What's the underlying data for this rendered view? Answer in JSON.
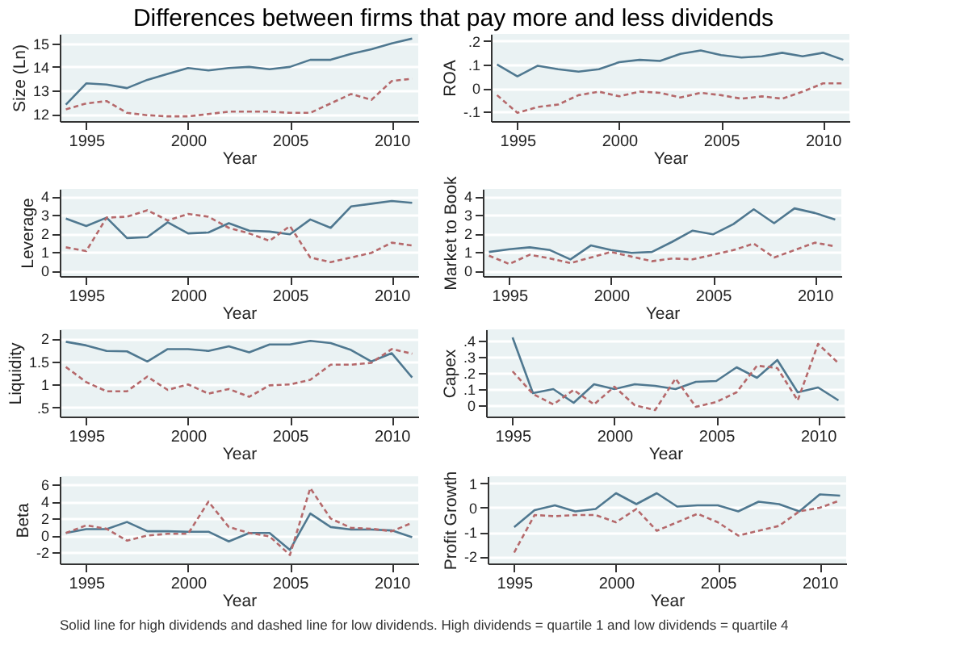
{
  "chart_data": [
    {
      "type": "line",
      "title": "Differences between firms that pay more and less dividends",
      "xlabel": "Year",
      "ylabel": "Size (Ln)",
      "x": [
        1994,
        1995,
        1996,
        1997,
        1998,
        1999,
        2000,
        2001,
        2002,
        2003,
        2004,
        2005,
        2006,
        2007,
        2008,
        2009,
        2010,
        2011
      ],
      "xlim": [
        1993.7,
        2011.3
      ],
      "xticks": [
        1995,
        2000,
        2005,
        2010
      ],
      "ylim": [
        11.7,
        15.4
      ],
      "yticks": [
        12,
        13,
        14,
        15
      ],
      "grid": "y",
      "series": [
        {
          "color": "#4f7890",
          "line_style": "solid",
          "values": [
            12.4,
            13.3,
            13.25,
            13.1,
            13.45,
            13.7,
            13.95,
            13.85,
            13.95,
            14.0,
            13.9,
            14.0,
            14.3,
            14.3,
            14.55,
            14.75,
            15.0,
            15.2
          ]
        },
        {
          "color": "#b5696b",
          "line_style": "dashed",
          "values": [
            12.2,
            12.45,
            12.55,
            12.05,
            11.95,
            11.9,
            11.9,
            12.0,
            12.1,
            12.1,
            12.1,
            12.05,
            12.05,
            12.45,
            12.85,
            12.6,
            13.4,
            13.5
          ]
        }
      ]
    },
    {
      "type": "line",
      "xlabel": "Year",
      "ylabel": "ROA",
      "x": [
        1994,
        1995,
        1996,
        1997,
        1998,
        1999,
        2000,
        2001,
        2002,
        2003,
        2004,
        2005,
        2006,
        2007,
        2008,
        2009,
        2010,
        2011
      ],
      "xlim": [
        1993.7,
        2011.3
      ],
      "xticks": [
        1995,
        2000,
        2005,
        2010
      ],
      "ylim": [
        -0.14,
        0.23
      ],
      "yticks": [
        {
          "value": -0.1,
          "label": "-.1"
        },
        0,
        {
          "value": 0.1,
          "label": ".1"
        },
        {
          "value": 0.2,
          "label": ".2"
        }
      ],
      "grid": "y",
      "series": [
        {
          "color": "#4f7890",
          "line_style": "solid",
          "values": [
            0.1,
            0.05,
            0.095,
            0.08,
            0.07,
            0.08,
            0.11,
            0.12,
            0.115,
            0.145,
            0.16,
            0.14,
            0.13,
            0.135,
            0.15,
            0.135,
            0.15,
            0.12
          ]
        },
        {
          "color": "#b5696b",
          "line_style": "dashed",
          "values": [
            -0.03,
            -0.105,
            -0.08,
            -0.07,
            -0.03,
            -0.015,
            -0.035,
            -0.015,
            -0.02,
            -0.04,
            -0.02,
            -0.03,
            -0.045,
            -0.035,
            -0.045,
            -0.015,
            0.02,
            0.02
          ]
        }
      ]
    },
    {
      "type": "line",
      "xlabel": "Year",
      "ylabel": "Leverage",
      "x": [
        1994,
        1995,
        1996,
        1997,
        1998,
        1999,
        2000,
        2001,
        2002,
        2003,
        2004,
        2005,
        2006,
        2007,
        2008,
        2009,
        2010,
        2011
      ],
      "xlim": [
        1993.7,
        2011.3
      ],
      "xticks": [
        1995,
        2000,
        2005,
        2010
      ],
      "ylim": [
        -0.3,
        4.4
      ],
      "yticks": [
        0,
        1,
        2,
        3,
        4
      ],
      "grid": "y",
      "series": [
        {
          "color": "#4f7890",
          "line_style": "solid",
          "values": [
            2.8,
            2.4,
            2.85,
            1.75,
            1.8,
            2.6,
            2.0,
            2.05,
            2.55,
            2.15,
            2.1,
            1.95,
            2.75,
            2.3,
            3.45,
            3.6,
            3.75,
            3.65
          ]
        },
        {
          "color": "#b5696b",
          "line_style": "dashed",
          "values": [
            1.25,
            1.05,
            2.85,
            2.9,
            3.25,
            2.7,
            3.05,
            2.9,
            2.3,
            2.0,
            1.6,
            2.4,
            0.7,
            0.45,
            0.7,
            0.95,
            1.5,
            1.35
          ]
        }
      ]
    },
    {
      "type": "line",
      "xlabel": "Year",
      "ylabel": "Market to Book",
      "x": [
        1994,
        1995,
        1996,
        1997,
        1998,
        1999,
        2000,
        2001,
        2002,
        2003,
        2004,
        2005,
        2006,
        2007,
        2008,
        2009,
        2010,
        2011
      ],
      "xlim": [
        1993.7,
        2011.3
      ],
      "xticks": [
        1995,
        2000,
        2005,
        2010
      ],
      "ylim": [
        -0.3,
        4.4
      ],
      "yticks": [
        0,
        1,
        2,
        3,
        4
      ],
      "grid": "y",
      "series": [
        {
          "color": "#4f7890",
          "line_style": "solid",
          "values": [
            1.0,
            1.15,
            1.25,
            1.1,
            0.6,
            1.35,
            1.1,
            0.95,
            1.0,
            1.55,
            2.15,
            1.95,
            2.5,
            3.3,
            2.55,
            3.35,
            3.1,
            2.75
          ]
        },
        {
          "color": "#b5696b",
          "line_style": "dashed",
          "values": [
            0.8,
            0.35,
            0.85,
            0.65,
            0.4,
            0.7,
            1.0,
            0.75,
            0.5,
            0.65,
            0.6,
            0.85,
            1.1,
            1.45,
            0.7,
            1.1,
            1.5,
            1.3
          ]
        }
      ]
    },
    {
      "type": "line",
      "xlabel": "Year",
      "ylabel": "Liquidity",
      "x": [
        1994,
        1995,
        1996,
        1997,
        1998,
        1999,
        2000,
        2001,
        2002,
        2003,
        2004,
        2005,
        2006,
        2007,
        2008,
        2009,
        2010,
        2011
      ],
      "xlim": [
        1993.7,
        2011.3
      ],
      "xticks": [
        1995,
        2000,
        2005,
        2010
      ],
      "ylim": [
        0.3,
        2.2
      ],
      "yticks": [
        {
          "value": 0.5,
          "label": ".5"
        },
        1,
        1.5,
        2
      ],
      "grid": "y",
      "series": [
        {
          "color": "#4f7890",
          "line_style": "solid",
          "values": [
            1.93,
            1.85,
            1.73,
            1.72,
            1.5,
            1.77,
            1.77,
            1.73,
            1.83,
            1.7,
            1.87,
            1.87,
            1.95,
            1.9,
            1.75,
            1.5,
            1.68,
            1.15
          ]
        },
        {
          "color": "#b5696b",
          "line_style": "dashed",
          "values": [
            1.38,
            1.05,
            0.85,
            0.85,
            1.17,
            0.88,
            1.0,
            0.8,
            0.9,
            0.73,
            0.98,
            1.0,
            1.1,
            1.43,
            1.43,
            1.47,
            1.77,
            1.67
          ]
        }
      ]
    },
    {
      "type": "line",
      "xlabel": "Year",
      "ylabel": "Capex",
      "x": [
        1995,
        1996,
        1997,
        1998,
        1999,
        2000,
        2001,
        2002,
        2003,
        2004,
        2005,
        2006,
        2007,
        2008,
        2009,
        2010,
        2011
      ],
      "xlim": [
        1993.7,
        2011.3
      ],
      "xticks": [
        1995,
        2000,
        2005,
        2010
      ],
      "ylim": [
        -0.07,
        0.47
      ],
      "yticks": [
        0,
        {
          "value": 0.1,
          "label": ".1"
        },
        {
          "value": 0.2,
          "label": ".2"
        },
        {
          "value": 0.3,
          "label": ".3"
        },
        {
          "value": 0.4,
          "label": ".4"
        }
      ],
      "grid": "y",
      "series": [
        {
          "color": "#4f7890",
          "line_style": "solid",
          "values": [
            0.42,
            0.075,
            0.1,
            0.015,
            0.13,
            0.1,
            0.13,
            0.12,
            0.1,
            0.145,
            0.15,
            0.235,
            0.17,
            0.28,
            0.08,
            0.11,
            0.03
          ]
        },
        {
          "color": "#b5696b",
          "line_style": "dashed",
          "values": [
            0.21,
            0.07,
            0.005,
            0.095,
            0.005,
            0.115,
            0.0,
            -0.03,
            0.165,
            -0.01,
            0.02,
            0.08,
            0.245,
            0.23,
            0.03,
            0.38,
            0.26
          ]
        }
      ]
    },
    {
      "type": "line",
      "xlabel": "Year",
      "ylabel": "Beta",
      "x": [
        1994,
        1995,
        1996,
        1997,
        1998,
        1999,
        2000,
        2001,
        2002,
        2003,
        2004,
        2005,
        2006,
        2007,
        2008,
        2009,
        2010,
        2011
      ],
      "xlim": [
        1993.7,
        2011.3
      ],
      "xticks": [
        1995,
        2000,
        2005,
        2010
      ],
      "ylim": [
        -3.3,
        7
      ],
      "yticks": [
        -2,
        0,
        2,
        4,
        6
      ],
      "grid": "y",
      "series": [
        {
          "color": "#4f7890",
          "line_style": "solid",
          "values": [
            0.3,
            0.75,
            0.75,
            1.6,
            0.5,
            0.5,
            0.45,
            0.45,
            -0.7,
            0.3,
            0.3,
            -1.7,
            2.6,
            1.0,
            0.7,
            0.7,
            0.6,
            -0.2
          ]
        },
        {
          "color": "#b5696b",
          "line_style": "dashed",
          "values": [
            0.3,
            1.2,
            0.8,
            -0.6,
            0.0,
            0.2,
            0.2,
            4.0,
            1.0,
            0.3,
            -0.1,
            -2.3,
            5.6,
            2.0,
            0.9,
            0.8,
            0.5,
            1.5
          ]
        }
      ]
    },
    {
      "type": "line",
      "xlabel": "Year",
      "ylabel": "Profit Growth",
      "x": [
        1995,
        1996,
        1997,
        1998,
        1999,
        2000,
        2001,
        2002,
        2003,
        2004,
        2005,
        2006,
        2007,
        2008,
        2009,
        2010,
        2011
      ],
      "xlim": [
        1993.7,
        2011.3
      ],
      "xticks": [
        1995,
        2000,
        2005,
        2010
      ],
      "ylim": [
        -2.3,
        1.3
      ],
      "yticks": [
        -2,
        -1,
        0,
        1
      ],
      "grid": "y",
      "annotations": [
        "Solid line for high dividends and dashed line for low dividends. High dividends = quartile 1 and low dividends = quartile 4"
      ],
      "series": [
        {
          "color": "#4f7890",
          "line_style": "solid",
          "values": [
            -0.8,
            -0.1,
            0.1,
            -0.15,
            -0.05,
            0.6,
            0.15,
            0.6,
            0.05,
            0.1,
            0.1,
            -0.15,
            0.25,
            0.15,
            -0.15,
            0.55,
            0.5
          ]
        },
        {
          "color": "#b5696b",
          "line_style": "dashed",
          "values": [
            -1.85,
            -0.3,
            -0.35,
            -0.3,
            -0.3,
            -0.6,
            -0.05,
            -0.95,
            -0.6,
            -0.25,
            -0.6,
            -1.15,
            -0.95,
            -0.75,
            -0.15,
            0.0,
            0.3
          ]
        }
      ]
    }
  ]
}
